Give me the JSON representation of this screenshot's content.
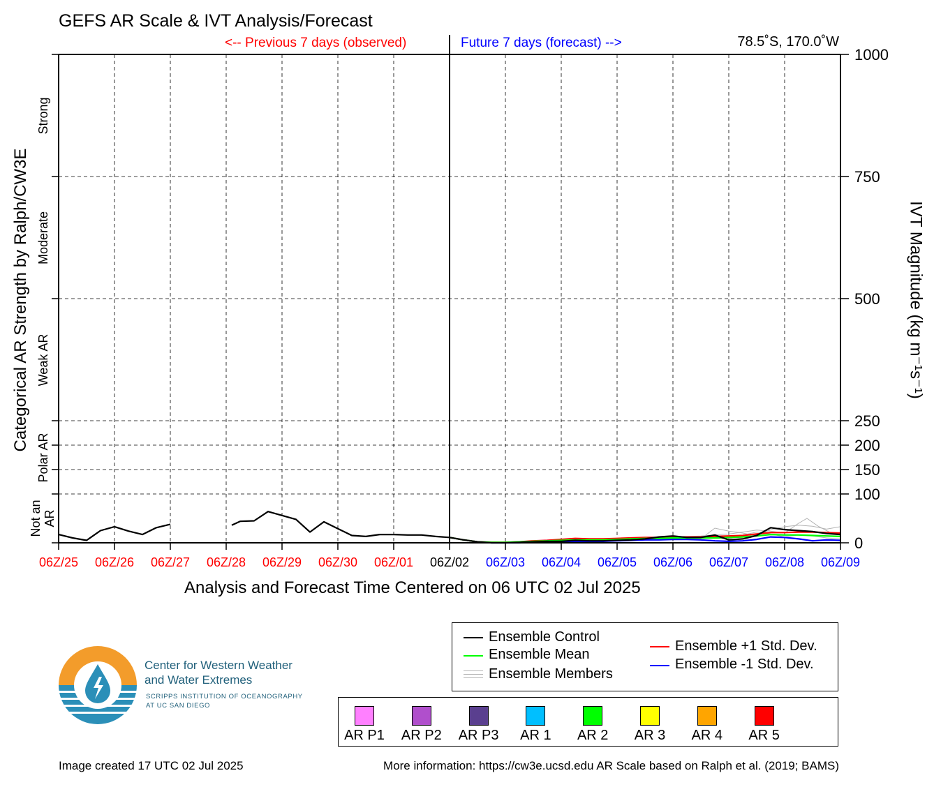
{
  "header": {
    "title": "GEFS AR Scale & IVT Analysis/Forecast",
    "previous_label": "<-- Previous 7 days (observed)",
    "future_label": "Future 7 days (forecast) -->",
    "location": "78.5˚S, 170.0˚W"
  },
  "axes": {
    "left_title": "Categorical AR Strength by Ralph/CW3E",
    "right_title": "IVT Magnitude (kg m⁻¹s⁻¹)",
    "x_title": "Analysis and Forecast Time Centered on 06 UTC 02 Jul 2025",
    "categories": [
      {
        "label": "Not an\nAR",
        "range": [
          0,
          100
        ]
      },
      {
        "label": "Polar AR",
        "range": [
          100,
          250
        ]
      },
      {
        "label": "Weak AR",
        "range": [
          250,
          500
        ]
      },
      {
        "label": "Moderate",
        "range": [
          500,
          750
        ]
      },
      {
        "label": "Strong",
        "range": [
          750,
          1000
        ]
      }
    ]
  },
  "chart_data": {
    "type": "line",
    "title": "GEFS AR Scale & IVT Analysis/Forecast",
    "xlabel": "Analysis and Forecast Time Centered on 06 UTC 02 Jul 2025",
    "ylabel": "IVT Magnitude (kg m⁻¹s⁻¹)",
    "xlim": [
      0,
      14
    ],
    "ylim": [
      0,
      1000
    ],
    "grid": true,
    "x_unit": "days",
    "x_ticks": [
      {
        "x": 0,
        "label": "06Z/25",
        "color": "#ff0000"
      },
      {
        "x": 1,
        "label": "06Z/26",
        "color": "#ff0000"
      },
      {
        "x": 2,
        "label": "06Z/27",
        "color": "#ff0000"
      },
      {
        "x": 3,
        "label": "06Z/28",
        "color": "#ff0000"
      },
      {
        "x": 4,
        "label": "06Z/29",
        "color": "#ff0000"
      },
      {
        "x": 5,
        "label": "06Z/30",
        "color": "#ff0000"
      },
      {
        "x": 6,
        "label": "06Z/01",
        "color": "#ff0000"
      },
      {
        "x": 7,
        "label": "06Z/02",
        "color": "#000000"
      },
      {
        "x": 8,
        "label": "06Z/03",
        "color": "#0000ff"
      },
      {
        "x": 9,
        "label": "06Z/04",
        "color": "#0000ff"
      },
      {
        "x": 10,
        "label": "06Z/05",
        "color": "#0000ff"
      },
      {
        "x": 11,
        "label": "06Z/06",
        "color": "#0000ff"
      },
      {
        "x": 12,
        "label": "06Z/07",
        "color": "#0000ff"
      },
      {
        "x": 13,
        "label": "06Z/08",
        "color": "#0000ff"
      },
      {
        "x": 14,
        "label": "06Z/09",
        "color": "#0000ff"
      }
    ],
    "y_ticks": [
      {
        "y": 0,
        "label": "0"
      },
      {
        "y": 100,
        "label": "100"
      },
      {
        "y": 150,
        "label": "150"
      },
      {
        "y": 200,
        "label": "200"
      },
      {
        "y": 250,
        "label": "250"
      },
      {
        "y": 500,
        "label": "500"
      },
      {
        "y": 750,
        "label": "750"
      },
      {
        "y": 1000,
        "label": "1000"
      }
    ],
    "series": [
      {
        "name": "Ensemble Control",
        "color": "#000000",
        "segments": [
          [
            [
              0,
              17
            ],
            [
              0.25,
              10
            ],
            [
              0.5,
              5
            ],
            [
              0.75,
              25
            ],
            [
              1,
              33
            ],
            [
              1.25,
              24
            ],
            [
              1.5,
              17
            ],
            [
              1.75,
              31
            ],
            [
              2,
              38
            ]
          ],
          [
            [
              3.1,
              36
            ],
            [
              3.25,
              44
            ],
            [
              3.5,
              45
            ],
            [
              3.75,
              64
            ],
            [
              4,
              56
            ],
            [
              4.25,
              48
            ],
            [
              4.5,
              22
            ],
            [
              4.75,
              43
            ],
            [
              5,
              29
            ],
            [
              5.25,
              15
            ],
            [
              5.5,
              13
            ],
            [
              5.75,
              17
            ],
            [
              6,
              17
            ],
            [
              6.25,
              16
            ],
            [
              6.5,
              16
            ],
            [
              6.75,
              13
            ],
            [
              7,
              11
            ],
            [
              7.25,
              6
            ],
            [
              7.5,
              2
            ],
            [
              7.75,
              0
            ],
            [
              8,
              0
            ],
            [
              8.25,
              1
            ],
            [
              8.5,
              2
            ],
            [
              8.75,
              3
            ],
            [
              9,
              3
            ],
            [
              9.25,
              5
            ],
            [
              9.5,
              4
            ],
            [
              9.75,
              4
            ],
            [
              10,
              5
            ],
            [
              10.25,
              6
            ],
            [
              10.5,
              8
            ],
            [
              10.75,
              12
            ],
            [
              11,
              14
            ],
            [
              11.25,
              11
            ],
            [
              11.5,
              11
            ],
            [
              11.75,
              16
            ],
            [
              12,
              6
            ],
            [
              12.25,
              8
            ],
            [
              12.5,
              15
            ],
            [
              12.75,
              31
            ],
            [
              13,
              27
            ],
            [
              13.25,
              25
            ],
            [
              13.5,
              23
            ],
            [
              13.75,
              19
            ],
            [
              14,
              17
            ]
          ]
        ]
      },
      {
        "name": "Ensemble Mean",
        "color": "#00ff00",
        "segments": [
          [
            [
              7,
              11
            ],
            [
              7.25,
              6
            ],
            [
              7.5,
              2
            ],
            [
              7.75,
              1
            ],
            [
              8,
              1
            ],
            [
              8.25,
              2
            ],
            [
              8.5,
              3
            ],
            [
              8.75,
              4
            ],
            [
              9,
              5
            ],
            [
              9.25,
              6
            ],
            [
              9.5,
              6
            ],
            [
              9.75,
              6
            ],
            [
              10,
              7
            ],
            [
              10.25,
              8
            ],
            [
              10.5,
              9
            ],
            [
              10.75,
              9
            ],
            [
              11,
              10
            ],
            [
              11.25,
              10
            ],
            [
              11.5,
              10
            ],
            [
              11.75,
              10
            ],
            [
              12,
              11
            ],
            [
              12.25,
              12
            ],
            [
              12.5,
              14
            ],
            [
              12.75,
              17
            ],
            [
              13,
              16
            ],
            [
              13.25,
              16
            ],
            [
              13.5,
              15
            ],
            [
              13.75,
              14
            ],
            [
              14,
              13
            ]
          ]
        ]
      },
      {
        "name": "Ensemble +1 Std. Dev.",
        "color": "#ff0000",
        "segments": [
          [
            [
              7,
              11
            ],
            [
              7.25,
              6
            ],
            [
              7.5,
              2
            ],
            [
              7.75,
              1
            ],
            [
              8,
              1
            ],
            [
              8.25,
              2
            ],
            [
              8.5,
              4
            ],
            [
              8.75,
              5
            ],
            [
              9,
              7
            ],
            [
              9.25,
              9
            ],
            [
              9.5,
              8
            ],
            [
              9.75,
              8
            ],
            [
              10,
              9
            ],
            [
              10.25,
              10
            ],
            [
              10.5,
              11
            ],
            [
              10.75,
              11
            ],
            [
              11,
              12
            ],
            [
              11.25,
              12
            ],
            [
              11.5,
              12
            ],
            [
              11.75,
              13
            ],
            [
              12,
              14
            ],
            [
              12.25,
              15
            ],
            [
              12.5,
              18
            ],
            [
              12.75,
              21
            ],
            [
              13,
              21
            ],
            [
              13.25,
              22
            ],
            [
              13.5,
              22
            ],
            [
              13.75,
              21
            ],
            [
              14,
              20
            ]
          ]
        ]
      },
      {
        "name": "Ensemble -1 Std. Dev.",
        "color": "#0000ff",
        "segments": [
          [
            [
              7,
              11
            ],
            [
              7.25,
              6
            ],
            [
              7.5,
              2
            ],
            [
              7.75,
              0
            ],
            [
              8,
              0
            ],
            [
              8.25,
              0
            ],
            [
              8.5,
              1
            ],
            [
              8.75,
              2
            ],
            [
              9,
              3
            ],
            [
              9.25,
              3
            ],
            [
              9.5,
              3
            ],
            [
              9.75,
              3
            ],
            [
              10,
              4
            ],
            [
              10.25,
              5
            ],
            [
              10.5,
              6
            ],
            [
              10.75,
              6
            ],
            [
              11,
              7
            ],
            [
              11.25,
              7
            ],
            [
              11.5,
              6
            ],
            [
              11.75,
              4
            ],
            [
              12,
              3
            ],
            [
              12.25,
              4
            ],
            [
              12.5,
              7
            ],
            [
              12.75,
              12
            ],
            [
              13,
              11
            ],
            [
              13.25,
              8
            ],
            [
              13.5,
              4
            ],
            [
              13.75,
              6
            ],
            [
              14,
              5
            ]
          ]
        ]
      }
    ],
    "members": [
      [
        [
          7,
          11
        ],
        [
          7.5,
          3
        ],
        [
          8,
          1
        ],
        [
          8.5,
          3
        ],
        [
          9,
          5
        ],
        [
          9.5,
          6
        ],
        [
          10,
          7
        ],
        [
          10.5,
          9
        ],
        [
          11,
          12
        ],
        [
          11.5,
          14
        ],
        [
          12,
          18
        ],
        [
          12.5,
          26
        ],
        [
          12.75,
          24
        ],
        [
          13,
          20
        ],
        [
          13.25,
          40
        ],
        [
          13.4,
          50
        ],
        [
          13.6,
          34
        ],
        [
          13.8,
          22
        ],
        [
          14,
          18
        ]
      ],
      [
        [
          7,
          11
        ],
        [
          7.5,
          2
        ],
        [
          8,
          1
        ],
        [
          8.5,
          2
        ],
        [
          9,
          4
        ],
        [
          9.5,
          5
        ],
        [
          10,
          6
        ],
        [
          10.5,
          8
        ],
        [
          11,
          10
        ],
        [
          11.5,
          8
        ],
        [
          11.75,
          30
        ],
        [
          12,
          24
        ],
        [
          12.25,
          20
        ],
        [
          12.5,
          14
        ],
        [
          12.75,
          27
        ],
        [
          13,
          33
        ],
        [
          13.25,
          36
        ],
        [
          13.5,
          34
        ],
        [
          13.75,
          28
        ],
        [
          14,
          33
        ]
      ],
      [
        [
          7,
          11
        ],
        [
          7.5,
          2
        ],
        [
          8,
          0
        ],
        [
          8.5,
          1
        ],
        [
          9,
          3
        ],
        [
          9.5,
          4
        ],
        [
          10,
          5
        ],
        [
          10.5,
          7
        ],
        [
          11,
          9
        ],
        [
          11.5,
          10
        ],
        [
          12,
          8
        ],
        [
          12.25,
          16
        ],
        [
          12.5,
          22
        ],
        [
          12.75,
          18
        ],
        [
          13,
          12
        ],
        [
          13.25,
          16
        ],
        [
          13.5,
          14
        ],
        [
          13.75,
          10
        ],
        [
          14,
          8
        ]
      ]
    ]
  },
  "legend": {
    "items": [
      {
        "label": "Ensemble Control",
        "color": "#000000"
      },
      {
        "label": "Ensemble Mean",
        "color": "#00ff00"
      },
      {
        "label": "Ensemble Members",
        "color": "#b4b4b4"
      },
      {
        "label": "Ensemble +1 Std. Dev.",
        "color": "#ff0000"
      },
      {
        "label": "Ensemble -1 Std. Dev.",
        "color": "#0000ff"
      }
    ]
  },
  "ar_scale": [
    {
      "label": "AR P1",
      "color": "#ff80ff"
    },
    {
      "label": "AR P2",
      "color": "#b04fcc"
    },
    {
      "label": "AR P3",
      "color": "#5a3f8f"
    },
    {
      "label": "AR 1",
      "color": "#00bfff"
    },
    {
      "label": "AR 2",
      "color": "#00ff00"
    },
    {
      "label": "AR 3",
      "color": "#ffff00"
    },
    {
      "label": "AR 4",
      "color": "#ffa500"
    },
    {
      "label": "AR 5",
      "color": "#ff0000"
    }
  ],
  "branding": {
    "org_line_1": "Center for Western Weather",
    "org_line_2": "and Water Extremes",
    "sub_line_1": "SCRIPPS INSTITUTION OF OCEANOGRAPHY",
    "sub_line_2": "AT UC SAN DIEGO",
    "orange": "#f39c2b",
    "blue": "#2b8fb8"
  },
  "footer": {
    "created": "Image created 17 UTC 02 Jul 2025",
    "info": "More information: https://cw3e.ucsd.edu AR Scale based on Ralph et al. (2019; BAMS)"
  }
}
